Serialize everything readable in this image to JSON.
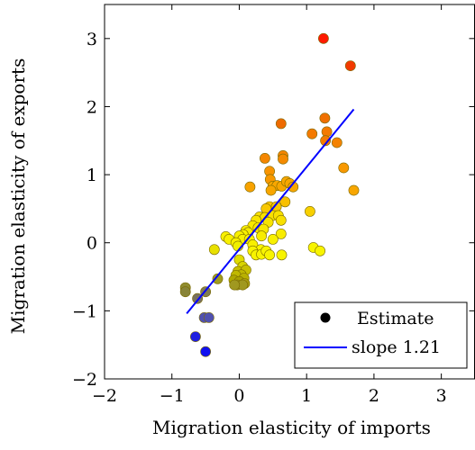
{
  "chart_data": {
    "type": "scatter",
    "title": "",
    "xlabel": "Migration elasticity of imports",
    "ylabel": "Migration elasticity of exports",
    "xlim": [
      -2,
      3.5
    ],
    "ylim": [
      -2,
      3.5
    ],
    "xticks": [
      -2,
      -1,
      0,
      1,
      2,
      3
    ],
    "yticks": [
      -2,
      -1,
      0,
      1,
      2,
      3
    ],
    "xtick_labels": [
      "−2",
      "−1",
      "0",
      "1",
      "2",
      "3"
    ],
    "ytick_labels": [
      "−2",
      "−1",
      "0",
      "1",
      "2",
      "3"
    ],
    "grid": false,
    "legend_position": "bottom-right",
    "legend": [
      {
        "label": "Estimate",
        "marker": "circle",
        "color": "#000000"
      },
      {
        "label": "slope 1.21",
        "marker": "line",
        "color": "#0000ff"
      }
    ],
    "colors": {
      "line": "#0000ff",
      "marker_edge": "#7a6a00"
    },
    "fit_line": {
      "name": "slope 1.21",
      "slope": 1.21,
      "x": [
        -0.78,
        1.7
      ],
      "y": [
        -1.04,
        1.96
      ]
    },
    "series": [
      {
        "name": "Estimate",
        "points": [
          {
            "x": 1.25,
            "y": 3.0,
            "color": "#ff1a00"
          },
          {
            "x": 1.65,
            "y": 2.6,
            "color": "#f23a00"
          },
          {
            "x": 0.62,
            "y": 1.75,
            "color": "#ee6a00"
          },
          {
            "x": 1.27,
            "y": 1.83,
            "color": "#f07000"
          },
          {
            "x": 1.3,
            "y": 1.63,
            "color": "#f47a00"
          },
          {
            "x": 1.08,
            "y": 1.6,
            "color": "#f47a00"
          },
          {
            "x": 1.45,
            "y": 1.47,
            "color": "#f48200"
          },
          {
            "x": 1.28,
            "y": 1.5,
            "color": "#f47a00"
          },
          {
            "x": 0.38,
            "y": 1.24,
            "color": "#f48600"
          },
          {
            "x": 0.65,
            "y": 1.28,
            "color": "#f48600"
          },
          {
            "x": 0.65,
            "y": 1.23,
            "color": "#f48a00"
          },
          {
            "x": 0.45,
            "y": 1.05,
            "color": "#f89400"
          },
          {
            "x": 0.46,
            "y": 0.93,
            "color": "#f89800"
          },
          {
            "x": 1.55,
            "y": 1.1,
            "color": "#f89800"
          },
          {
            "x": 1.7,
            "y": 0.77,
            "color": "#f8a600"
          },
          {
            "x": 0.16,
            "y": 0.82,
            "color": "#f8a200"
          },
          {
            "x": 0.5,
            "y": 0.83,
            "color": "#f8a600"
          },
          {
            "x": 0.56,
            "y": 0.84,
            "color": "#f8a600"
          },
          {
            "x": 0.63,
            "y": 0.83,
            "color": "#f8a600"
          },
          {
            "x": 0.7,
            "y": 0.9,
            "color": "#f8a600"
          },
          {
            "x": 0.75,
            "y": 0.87,
            "color": "#f8a600"
          },
          {
            "x": 0.8,
            "y": 0.82,
            "color": "#f8a600"
          },
          {
            "x": 0.47,
            "y": 0.77,
            "color": "#f8a600"
          },
          {
            "x": 0.68,
            "y": 0.6,
            "color": "#f8c000"
          },
          {
            "x": 0.45,
            "y": 0.53,
            "color": "#f8c800"
          },
          {
            "x": 0.55,
            "y": 0.53,
            "color": "#f8c800"
          },
          {
            "x": 0.4,
            "y": 0.5,
            "color": "#f8c800"
          },
          {
            "x": 1.05,
            "y": 0.46,
            "color": "#f8d000"
          },
          {
            "x": 0.3,
            "y": 0.38,
            "color": "#f8e000"
          },
          {
            "x": 0.38,
            "y": 0.37,
            "color": "#f8e000"
          },
          {
            "x": 0.5,
            "y": 0.4,
            "color": "#f8e000"
          },
          {
            "x": 0.58,
            "y": 0.4,
            "color": "#f8e000"
          },
          {
            "x": 0.62,
            "y": 0.33,
            "color": "#f8e000"
          },
          {
            "x": 0.25,
            "y": 0.33,
            "color": "#f8e400"
          },
          {
            "x": 0.43,
            "y": 0.3,
            "color": "#f8e400"
          },
          {
            "x": 0.2,
            "y": 0.25,
            "color": "#f8e800"
          },
          {
            "x": 0.28,
            "y": 0.22,
            "color": "#f8e800"
          },
          {
            "x": 0.36,
            "y": 0.2,
            "color": "#f8e800"
          },
          {
            "x": 0.1,
            "y": 0.18,
            "color": "#f8ec00"
          },
          {
            "x": 0.13,
            "y": 0.15,
            "color": "#f8ec00"
          },
          {
            "x": 0.06,
            "y": 0.12,
            "color": "#f8f000"
          },
          {
            "x": 0.0,
            "y": 0.1,
            "color": "#f8f000"
          },
          {
            "x": 0.05,
            "y": 0.05,
            "color": "#f8f000"
          },
          {
            "x": 0.15,
            "y": 0.05,
            "color": "#f8f000"
          },
          {
            "x": 0.33,
            "y": 0.1,
            "color": "#f8ec00"
          },
          {
            "x": 0.62,
            "y": 0.13,
            "color": "#f8ec00"
          },
          {
            "x": 0.5,
            "y": 0.05,
            "color": "#f8f000"
          },
          {
            "x": 0.2,
            "y": -0.03,
            "color": "#f8f000"
          },
          {
            "x": 0.32,
            "y": -0.1,
            "color": "#f8f400"
          },
          {
            "x": -0.2,
            "y": 0.09,
            "color": "#f8f000"
          },
          {
            "x": -0.15,
            "y": 0.05,
            "color": "#f8f000"
          },
          {
            "x": -0.05,
            "y": 0.0,
            "color": "#f8f000"
          },
          {
            "x": -0.02,
            "y": -0.05,
            "color": "#f0f000"
          },
          {
            "x": 0.2,
            "y": -0.12,
            "color": "#f8f400"
          },
          {
            "x": 0.25,
            "y": -0.18,
            "color": "#f8f400"
          },
          {
            "x": 0.33,
            "y": -0.17,
            "color": "#f8f400"
          },
          {
            "x": 0.4,
            "y": -0.12,
            "color": "#f8f400"
          },
          {
            "x": 0.45,
            "y": -0.18,
            "color": "#f8f400"
          },
          {
            "x": 0.63,
            "y": -0.18,
            "color": "#f8f400"
          },
          {
            "x": 1.1,
            "y": -0.07,
            "color": "#f8f400"
          },
          {
            "x": 1.2,
            "y": -0.12,
            "color": "#f8f400"
          },
          {
            "x": -0.37,
            "y": -0.1,
            "color": "#e8e000"
          },
          {
            "x": 0.0,
            "y": -0.25,
            "color": "#e0dc00"
          },
          {
            "x": 0.05,
            "y": -0.35,
            "color": "#d8d400"
          },
          {
            "x": -0.02,
            "y": -0.42,
            "color": "#c8c000"
          },
          {
            "x": 0.1,
            "y": -0.4,
            "color": "#c8c000"
          },
          {
            "x": 0.03,
            "y": -0.47,
            "color": "#c0b800"
          },
          {
            "x": -0.05,
            "y": -0.48,
            "color": "#c0b800"
          },
          {
            "x": 0.07,
            "y": -0.52,
            "color": "#b8b000"
          },
          {
            "x": -0.08,
            "y": -0.55,
            "color": "#b0a800"
          },
          {
            "x": 0.0,
            "y": -0.57,
            "color": "#aaa200"
          },
          {
            "x": 0.08,
            "y": -0.6,
            "color": "#a89c10"
          },
          {
            "x": -0.03,
            "y": -0.62,
            "color": "#a09820"
          },
          {
            "x": 0.05,
            "y": -0.62,
            "color": "#a09820"
          },
          {
            "x": -0.07,
            "y": -0.62,
            "color": "#a09820"
          },
          {
            "x": -0.32,
            "y": -0.53,
            "color": "#a09c20"
          },
          {
            "x": -0.8,
            "y": -0.66,
            "color": "#908c30"
          },
          {
            "x": -0.8,
            "y": -0.72,
            "color": "#888438"
          },
          {
            "x": -0.5,
            "y": -0.72,
            "color": "#807c50"
          },
          {
            "x": -0.62,
            "y": -0.82,
            "color": "#787060"
          },
          {
            "x": -0.52,
            "y": -1.1,
            "color": "#5050b0"
          },
          {
            "x": -0.45,
            "y": -1.1,
            "color": "#5050b0"
          },
          {
            "x": -0.65,
            "y": -1.38,
            "color": "#2020e0"
          },
          {
            "x": -0.5,
            "y": -1.6,
            "color": "#1010f0"
          }
        ]
      }
    ]
  }
}
